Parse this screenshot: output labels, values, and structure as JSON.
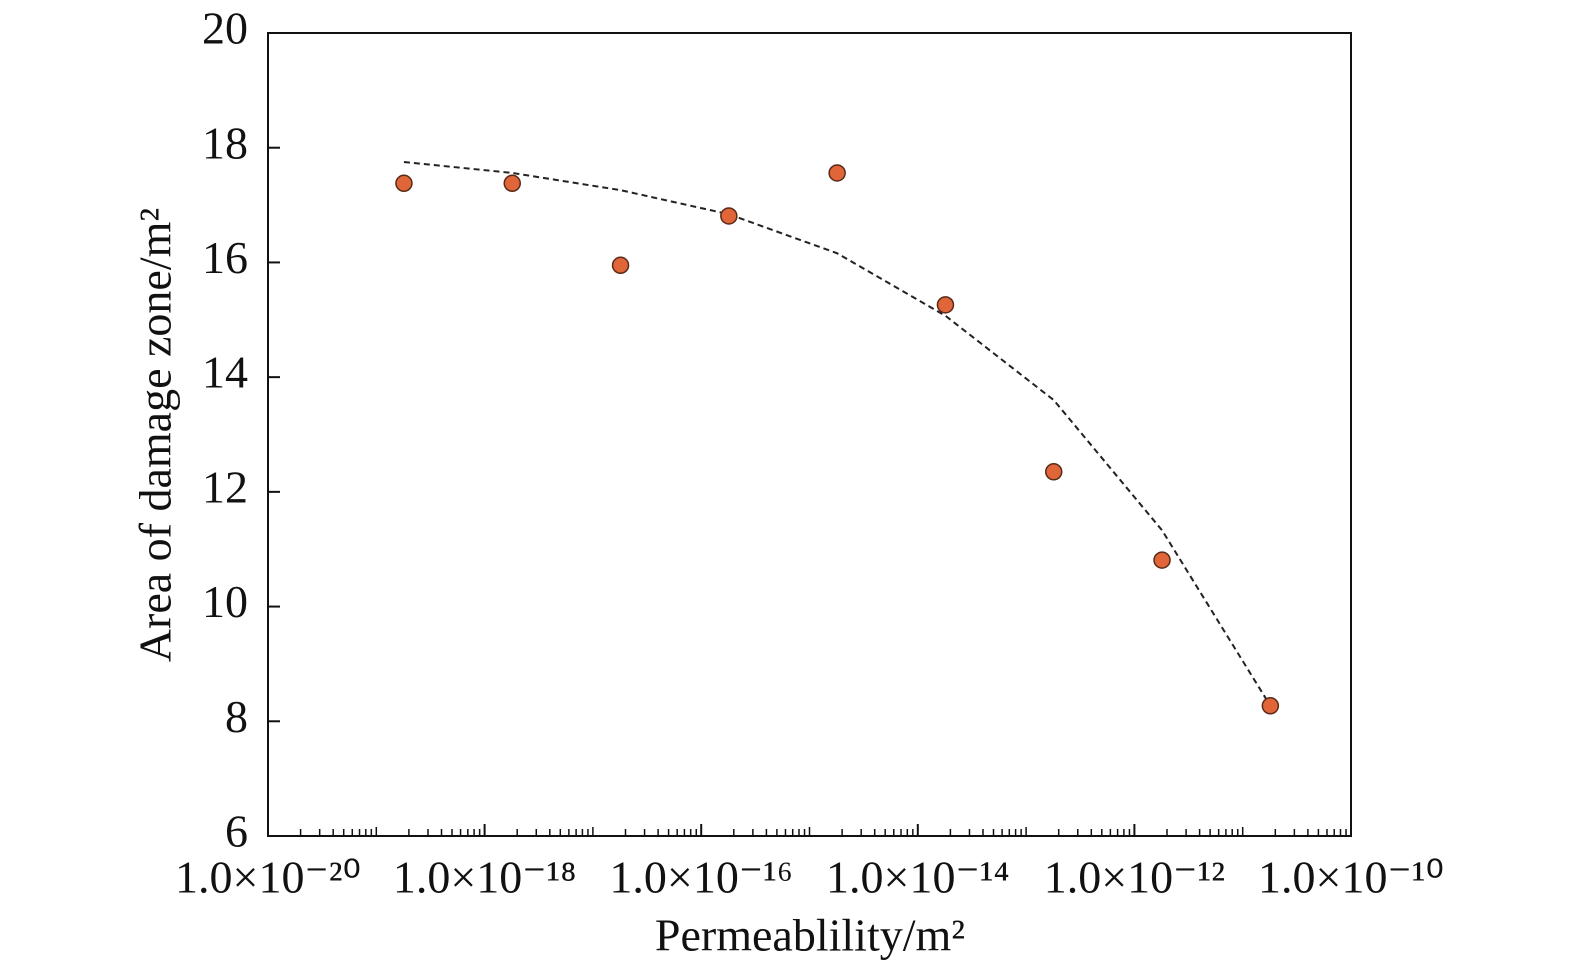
{
  "chart_data": {
    "type": "scatter",
    "x_label": "Permeablility/m²",
    "y_label": "Area of damage zone/m²",
    "xlog": true,
    "xlim": [
      1e-20,
      1e-10
    ],
    "xticks": [
      {
        "value": 1e-20,
        "label": "1.0×10⁻²⁰"
      },
      {
        "value": 1e-18,
        "label": "1.0×10⁻¹⁸"
      },
      {
        "value": 1e-16,
        "label": "1.0×10⁻¹⁶"
      },
      {
        "value": 1e-14,
        "label": "1.0×10⁻¹⁴"
      },
      {
        "value": 1e-12,
        "label": "1.0×10⁻¹²"
      },
      {
        "value": 1e-10,
        "label": "1.0×10⁻¹⁰"
      }
    ],
    "ylim": [
      6,
      20
    ],
    "yticks": [
      6,
      8,
      10,
      12,
      14,
      16,
      18,
      20
    ],
    "series": [
      {
        "type": "scatter",
        "color": "#e0663a",
        "x": [
          1.8e-19,
          1.8e-18,
          1.8e-17,
          1.8e-16,
          1.8e-15,
          1.8e-14,
          1.8e-13,
          1.8e-12,
          1.8e-11
        ],
        "values": [
          17.38,
          17.38,
          15.95,
          16.81,
          17.56,
          15.26,
          12.35,
          10.81,
          8.27
        ]
      },
      {
        "type": "line",
        "color": "#222222",
        "dashed": true,
        "x": [
          1.8e-19,
          1.8e-18,
          1.8e-17,
          1.8e-16,
          1.8e-15,
          1.8e-14,
          1.8e-13,
          1.8e-12,
          1.8e-11
        ],
        "values": [
          17.75,
          17.56,
          17.26,
          16.84,
          16.16,
          15.07,
          13.6,
          11.33,
          8.27
        ]
      }
    ]
  }
}
